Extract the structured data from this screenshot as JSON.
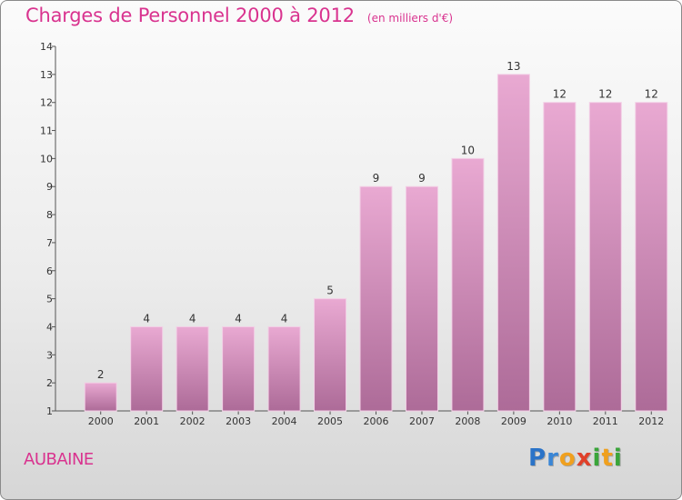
{
  "header": {
    "title": "Charges de Personnel 2000 à 2012",
    "unit": "(en milliers d'€)"
  },
  "commune": "AUBAINE",
  "logo": {
    "letters": [
      "P",
      "r",
      "o",
      "x",
      "i",
      "t",
      "i"
    ],
    "colors": [
      "#2a73c8",
      "#3a86d6",
      "#f0a01e",
      "#e0402a",
      "#3aa53a",
      "#f0a01e",
      "#3aa53a"
    ]
  },
  "colors": {
    "accent": "#d9338f",
    "bar_top": "#e9a9d2",
    "bar_bottom": "#ad6b98"
  },
  "chart_data": {
    "type": "bar",
    "title": "Charges de Personnel 2000 à 2012",
    "subtitle": "(en milliers d'€)",
    "categories": [
      "2000",
      "2001",
      "2002",
      "2003",
      "2004",
      "2005",
      "2006",
      "2007",
      "2008",
      "2009",
      "2010",
      "2011",
      "2012"
    ],
    "values": [
      2,
      4,
      4,
      4,
      4,
      5,
      9,
      9,
      10,
      13,
      12,
      12,
      12
    ],
    "ylim": [
      1,
      14
    ],
    "yticks": [
      1,
      2,
      3,
      4,
      5,
      6,
      7,
      8,
      9,
      10,
      11,
      12,
      13,
      14
    ],
    "grid": false,
    "legend": "none"
  }
}
